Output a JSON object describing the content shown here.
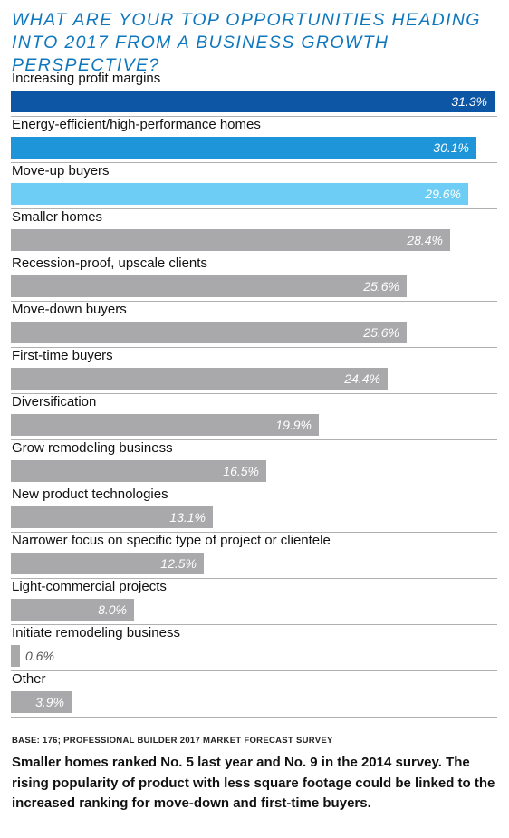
{
  "title": "What are your top opportunities heading into 2017 from a business growth perspective?",
  "footer": {
    "base": "BASE: 176; PROFESSIONAL BUILDER 2017 MARKET FORECAST SURVEY",
    "note": "Smaller homes ranked No. 5 last year and No. 9 in the 2014 survey. The rising popularity of product with less square footage could be linked to the increased ranking for move-down and first-time buyers."
  },
  "colors": {
    "title": "#0f77be",
    "bar_top1": "#0d56a6",
    "bar_top2": "#1e95d9",
    "bar_top3": "#6dcdf5",
    "bar_default": "#a9a9ab"
  },
  "chart_data": {
    "type": "bar",
    "orientation": "horizontal",
    "title": "What are your top opportunities heading into 2017 from a business growth perspective?",
    "unit": "%",
    "categories": [
      "Increasing profit margins",
      "Energy-efficient/high-performance homes",
      "Move-up buyers",
      "Smaller homes",
      "Recession-proof, upscale clients",
      "Move-down buyers",
      "First-time buyers",
      "Diversification",
      "Grow remodeling business",
      "New product technologies",
      "Narrower focus on specific type of project or clientele",
      "Light-commercial projects",
      "Initiate remodeling business",
      "Other"
    ],
    "values": [
      31.3,
      30.1,
      29.6,
      28.4,
      25.6,
      25.6,
      24.4,
      19.9,
      16.5,
      13.1,
      12.5,
      8.0,
      0.6,
      3.9
    ],
    "value_labels": [
      "31.3%",
      "30.1%",
      "29.6%",
      "28.4%",
      "25.6%",
      "25.6%",
      "24.4%",
      "19.9%",
      "16.5%",
      "13.1%",
      "12.5%",
      "8.0%",
      "0.6%",
      "3.9%"
    ],
    "xlim": [
      0,
      31.3
    ],
    "grid": false,
    "legend": "none"
  }
}
